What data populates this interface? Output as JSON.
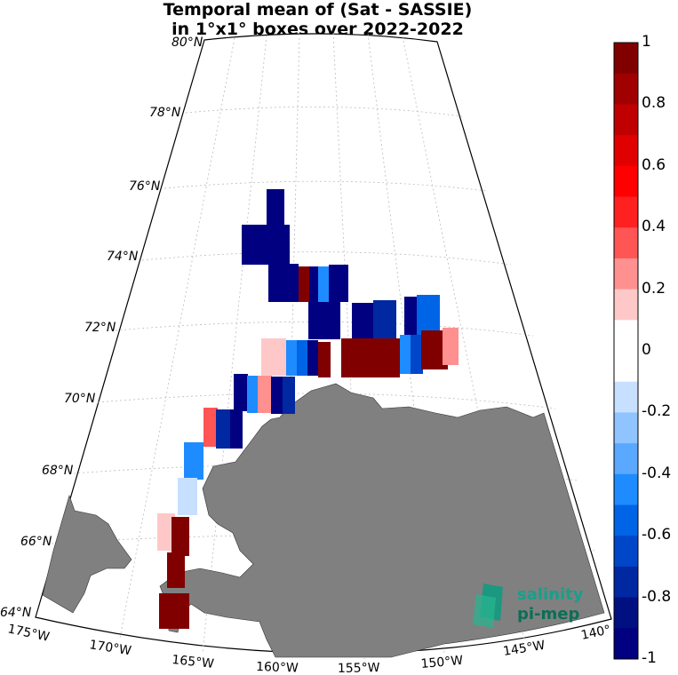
{
  "title_line1": "Temporal mean of (Sat - SASSIE)",
  "title_line2": "in 1°x1° boxes over 2022-2022",
  "lat_labels": [
    "80°N",
    "78°N",
    "76°N",
    "74°N",
    "72°N",
    "70°N",
    "68°N",
    "66°N",
    "64°N"
  ],
  "lon_labels": [
    "175°W",
    "170°W",
    "165°W",
    "160°W",
    "155°W",
    "150°W",
    "145°W",
    "140°"
  ],
  "colorbar": {
    "ticks": [
      "1",
      "0.8",
      "0.6",
      "0.4",
      "0.2",
      "0",
      "-0.2",
      "-0.4",
      "-0.6",
      "-0.8",
      "-1"
    ],
    "colors": [
      "#800000",
      "#a00000",
      "#c00000",
      "#e00000",
      "#ff0000",
      "#ff2020",
      "#ff5555",
      "#ff9090",
      "#ffc8c8",
      "#ffffff",
      "#ffffff",
      "#c8e0ff",
      "#90c4ff",
      "#5aa8ff",
      "#1e8cff",
      "#0064e6",
      "#0046c8",
      "#0028a0",
      "#001080",
      "#000080"
    ]
  },
  "logo": {
    "line1": "salinity",
    "line2": "pi-mep"
  },
  "colors": {
    "land": "#808080",
    "dark_blue": "#000080",
    "dark_red": "#800000"
  }
}
